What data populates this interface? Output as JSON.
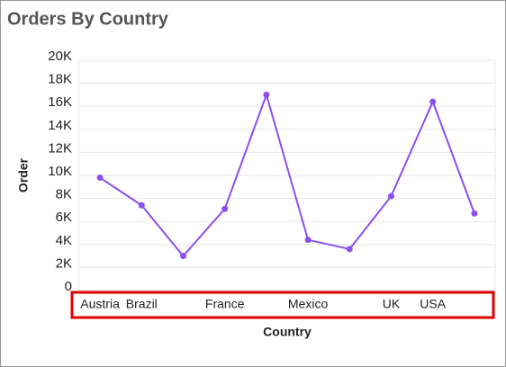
{
  "chart_data": {
    "type": "line",
    "title": "Orders By Country",
    "x_label": "Country",
    "y_label": "Order",
    "categories": [
      "Austria",
      "Brazil",
      null,
      "France",
      null,
      "Mexico",
      null,
      "UK",
      "USA",
      null
    ],
    "series": [
      {
        "name": "Order",
        "color": "#8b4ff0",
        "values": [
          9800,
          7400,
          3000,
          7100,
          17000,
          4400,
          3600,
          8200,
          16400,
          6700
        ]
      }
    ],
    "ylim": [
      0,
      20000
    ],
    "yticks": [
      0,
      {
        "value": 2000,
        "label": "2K"
      },
      {
        "value": 4000,
        "label": "4K"
      },
      {
        "value": 6000,
        "label": "6K"
      },
      {
        "value": 8000,
        "label": "8K"
      },
      {
        "value": 10000,
        "label": "10K"
      },
      {
        "value": 12000,
        "label": "12K"
      },
      {
        "value": 14000,
        "label": "14K"
      },
      {
        "value": 16000,
        "label": "16K"
      },
      {
        "value": 18000,
        "label": "18K"
      },
      {
        "value": 20000,
        "label": "20K"
      }
    ],
    "grid": true
  }
}
